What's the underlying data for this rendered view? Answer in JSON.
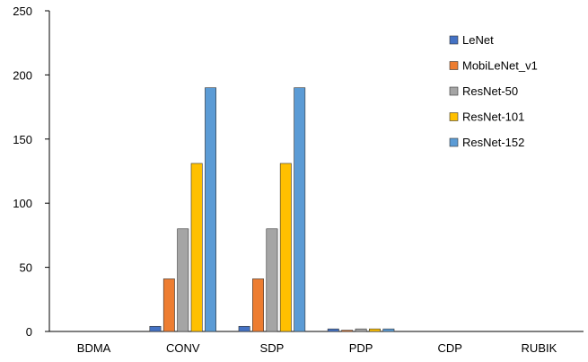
{
  "chart_data": {
    "type": "bar",
    "title": "",
    "xlabel": "",
    "ylabel": "",
    "ylim": [
      0,
      250
    ],
    "yticks": [
      0,
      50,
      100,
      150,
      200,
      250
    ],
    "grid": false,
    "legend_position": "top-right",
    "categories": [
      "BDMA",
      "CONV",
      "SDP",
      "PDP",
      "CDP",
      "RUBIK"
    ],
    "series": [
      {
        "name": "LeNet",
        "color": "#4472C4",
        "values": [
          0,
          4,
          4,
          2,
          0,
          0
        ]
      },
      {
        "name": "MobiLeNet_v1",
        "color": "#ED7D31",
        "values": [
          0,
          41,
          41,
          1,
          0,
          0
        ]
      },
      {
        "name": "ResNet-50",
        "color": "#A5A5A5",
        "values": [
          0,
          80,
          80,
          2,
          0,
          0
        ]
      },
      {
        "name": "ResNet-101",
        "color": "#FFC000",
        "values": [
          0,
          131,
          131,
          2,
          0,
          0
        ]
      },
      {
        "name": "ResNet-152",
        "color": "#5B9BD5",
        "values": [
          0,
          190,
          190,
          2,
          0,
          0
        ]
      }
    ]
  }
}
